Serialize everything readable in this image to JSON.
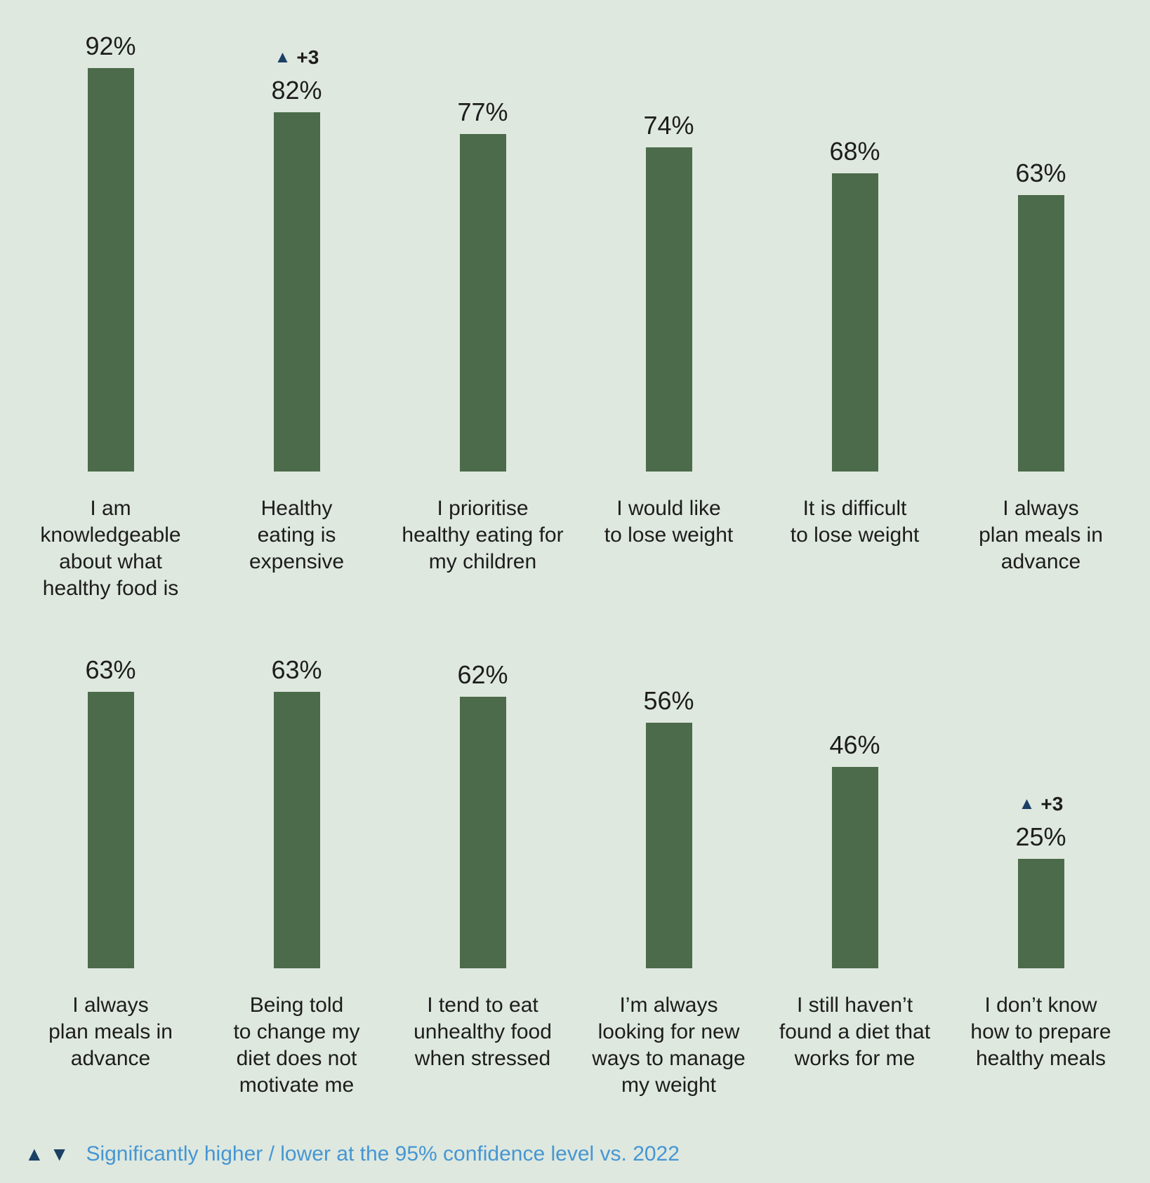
{
  "chart_data": {
    "type": "bar",
    "unit": "%",
    "bar_color": "#4c6b4a",
    "background_color": "#dee8df",
    "significance_marker_color": "#1b4066",
    "ylim": [
      0,
      100
    ],
    "grid": false,
    "rows": [
      {
        "bars": [
          {
            "label": "I am\nknowledgeable\nabout what\nhealthy food is",
            "value": 92,
            "display": "92%"
          },
          {
            "label": "Healthy\neating is\nexpensive",
            "value": 82,
            "display": "82%",
            "change": "+3",
            "change_direction": "up",
            "change_glyph": "▲"
          },
          {
            "label": "I prioritise\nhealthy eating for\nmy children",
            "value": 77,
            "display": "77%"
          },
          {
            "label": "I would like\nto lose weight",
            "value": 74,
            "display": "74%"
          },
          {
            "label": "It is difficult\nto lose weight",
            "value": 68,
            "display": "68%"
          },
          {
            "label": "I always\nplan meals in\nadvance",
            "value": 63,
            "display": "63%"
          }
        ]
      },
      {
        "bars": [
          {
            "label": "I always\nplan meals in\nadvance",
            "value": 63,
            "display": "63%"
          },
          {
            "label": "Being told\nto change my\ndiet does not\nmotivate me",
            "value": 63,
            "display": "63%"
          },
          {
            "label": "I tend to eat\nunhealthy food\nwhen stressed",
            "value": 62,
            "display": "62%"
          },
          {
            "label": "I’m always\nlooking for new\nways to manage\nmy weight",
            "value": 56,
            "display": "56%"
          },
          {
            "label": "I still haven’t\nfound a diet that\nworks for me",
            "value": 46,
            "display": "46%"
          },
          {
            "label": "I don’t know\nhow to prepare\nhealthy meals",
            "value": 25,
            "display": "25%",
            "change": "+3",
            "change_direction": "up",
            "change_glyph": "▲"
          }
        ]
      }
    ],
    "legend": {
      "up_glyph": "▲",
      "down_glyph": "▼",
      "text": "Significantly higher / lower at the 95% confidence level vs. 2022",
      "text_color": "#4696d2"
    }
  }
}
